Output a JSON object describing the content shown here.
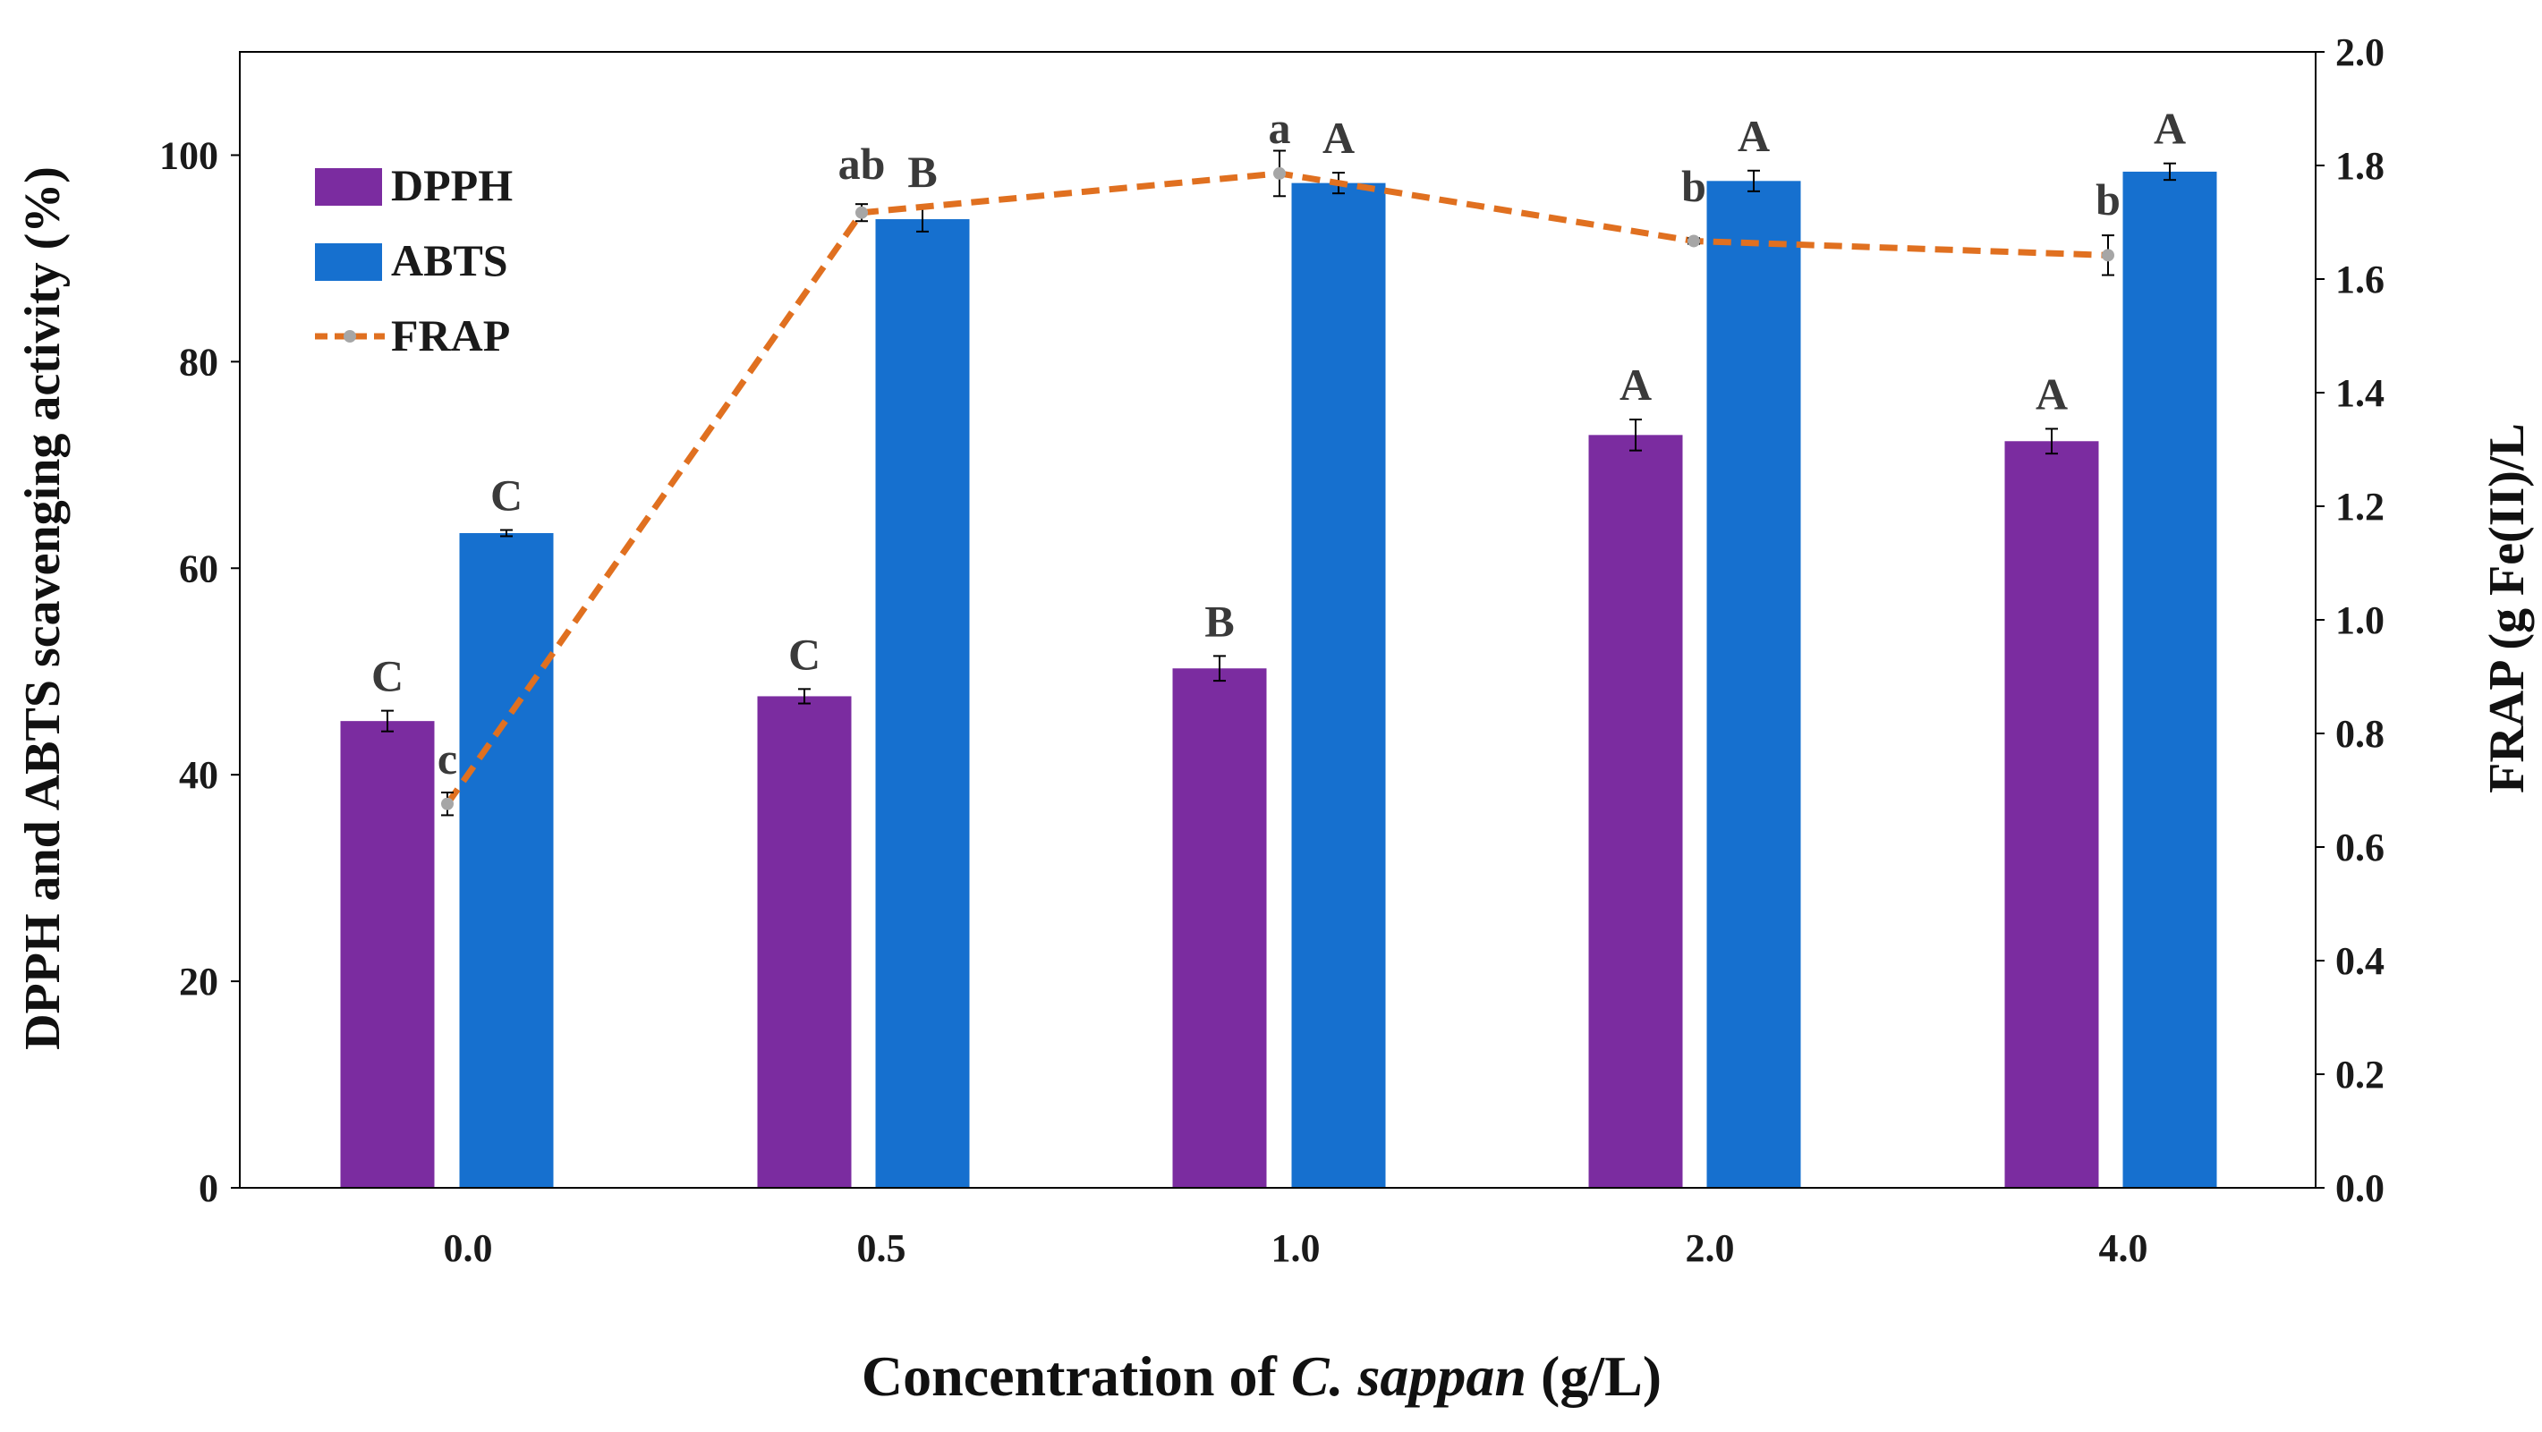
{
  "chart_data": {
    "type": "bar",
    "categories": [
      "0.0",
      "0.5",
      "1.0",
      "2.0",
      "4.0"
    ],
    "xlabel": "Concentration of ",
    "xlabel_italic": "C. sappan",
    "xlabel_suffix": " (g/L)",
    "ylabel": "DPPH and ABTS  scavenging activity (%)",
    "y2label": "FRAP (g Fe(II)/L",
    "ylim": [
      0,
      110
    ],
    "y_ticks": [
      "0",
      "20",
      "40",
      "60",
      "80",
      "100"
    ],
    "y2lim": [
      0,
      2.0
    ],
    "y2_ticks": [
      "0.0",
      "0.2",
      "0.4",
      "0.6",
      "0.8",
      "1.0",
      "1.2",
      "1.4",
      "1.6",
      "1.8",
      "2.0"
    ],
    "legend_position": "top-left",
    "series": [
      {
        "name": "DPPH",
        "kind": "bar",
        "axis": "left",
        "color": "#7b2ca0",
        "values": [
          45.2,
          47.6,
          50.3,
          72.9,
          72.3
        ],
        "errors": [
          1.0,
          0.7,
          1.2,
          1.5,
          1.2
        ],
        "labels": [
          "C",
          "C",
          "B",
          "A",
          "A"
        ]
      },
      {
        "name": "ABTS",
        "kind": "bar",
        "axis": "left",
        "color": "#1670cf",
        "values": [
          63.4,
          93.8,
          97.3,
          97.5,
          98.4
        ],
        "errors": [
          0.3,
          1.2,
          1.0,
          1.0,
          0.8
        ],
        "labels": [
          "C",
          "B",
          "A",
          "A",
          "A"
        ]
      },
      {
        "name": "FRAP",
        "kind": "line",
        "axis": "right",
        "color": "#e07020",
        "marker_color": "#a6a6a6",
        "values": [
          0.676,
          1.717,
          1.786,
          1.667,
          1.642
        ],
        "errors": [
          0.02,
          0.015,
          0.04,
          0.005,
          0.035
        ],
        "labels": [
          "c",
          "ab",
          "a",
          "b",
          "b"
        ]
      }
    ]
  }
}
